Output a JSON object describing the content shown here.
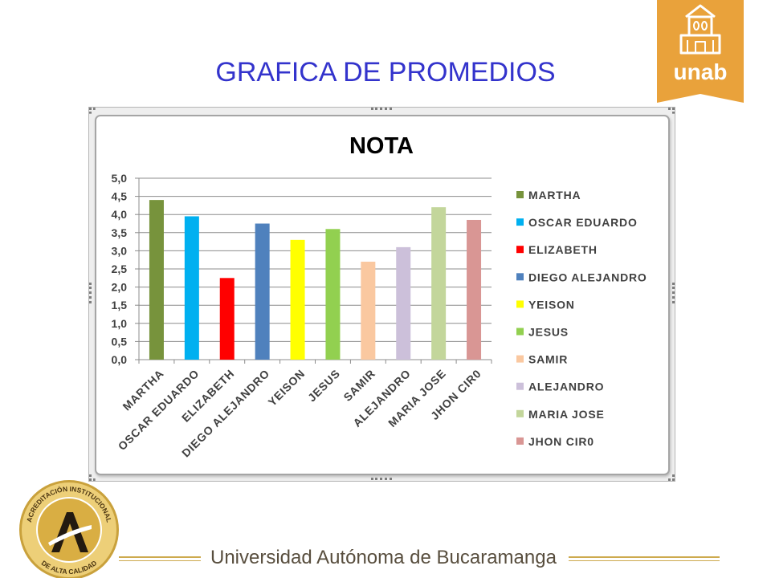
{
  "slide": {
    "title": "GRAFICA DE PROMEDIOS",
    "title_color": "#3333CC"
  },
  "logo": {
    "text": "unab",
    "icon": "building-icon",
    "color": "#E9A23B"
  },
  "chart_data": {
    "type": "bar",
    "title": "NOTA",
    "categories": [
      "MARTHA",
      "OSCAR EDUARDO",
      "ELIZABETH",
      "DIEGO ALEJANDRO",
      "YEISON",
      "JESUS",
      "SAMIR",
      "ALEJANDRO",
      "MARIA JOSE",
      "JHON CIR0"
    ],
    "values": [
      4.4,
      3.95,
      2.25,
      3.75,
      3.3,
      3.6,
      2.7,
      3.1,
      4.2,
      3.85
    ],
    "colors": [
      "#77933C",
      "#00B0F0",
      "#FF0000",
      "#4F81BD",
      "#FFFF00",
      "#92D050",
      "#FAC8A0",
      "#CCC0DA",
      "#C3D69B",
      "#D99694"
    ],
    "ylim": [
      0,
      5
    ],
    "ytick_step": 0.5,
    "yticks": [
      "0,0",
      "0,5",
      "1,0",
      "1,5",
      "2,0",
      "2,5",
      "3,0",
      "3,5",
      "4,0",
      "4,5",
      "5,0"
    ],
    "grid": true,
    "legend_position": "right"
  },
  "footer": {
    "university": "Universidad Autónoma de Bucaramanga",
    "text_color": "#584E3E",
    "accent_color": "#CDAA4E",
    "seal": {
      "top_text": "ACREDITACIÓN INSTITUCIONAL",
      "bottom_text": "DE ALTA CALIDAD",
      "color": "#C9A13C"
    }
  }
}
